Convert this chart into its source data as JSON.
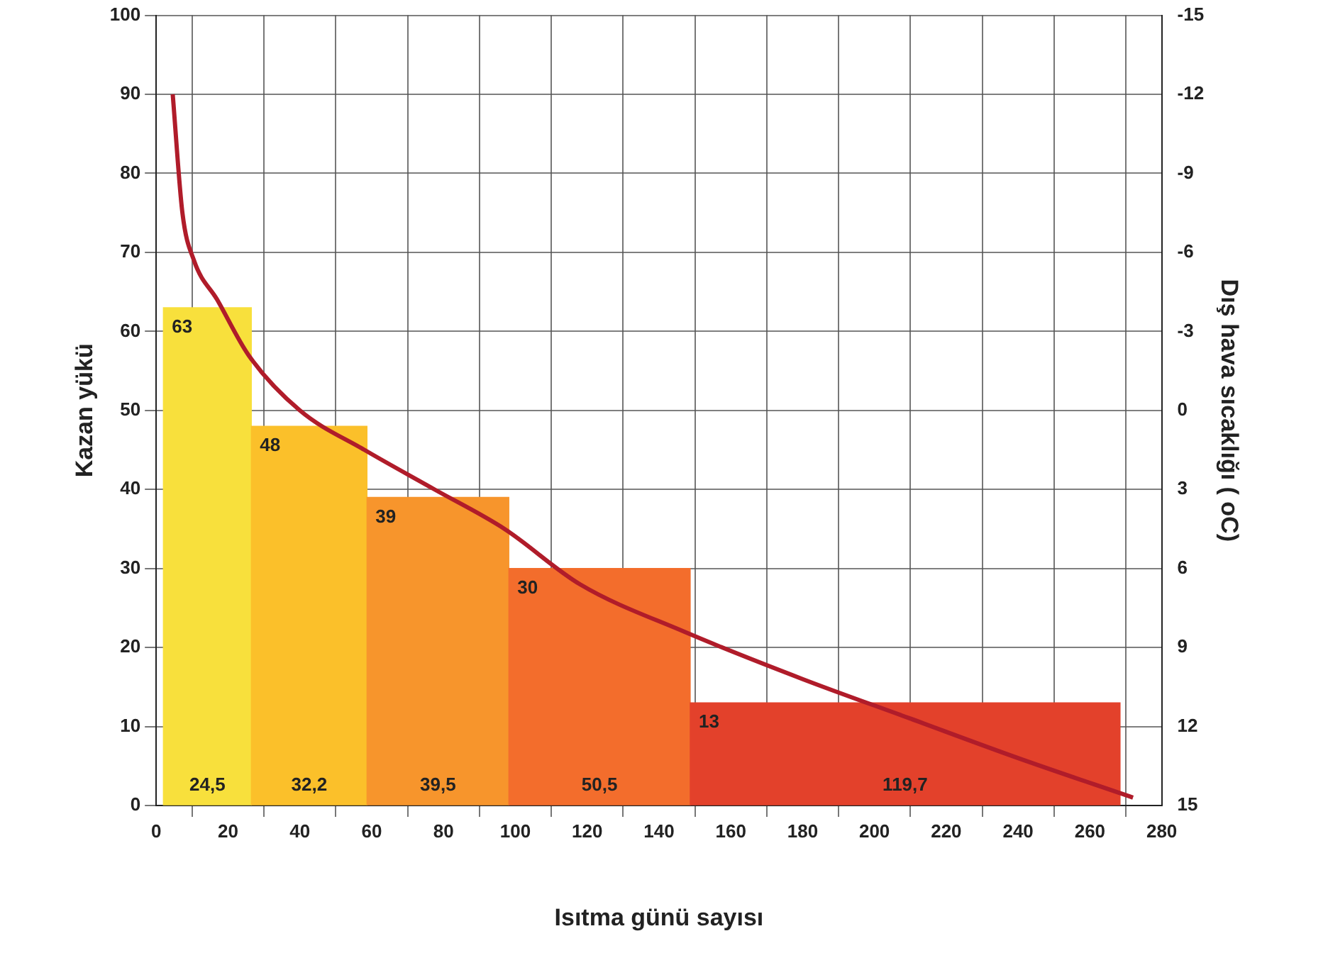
{
  "chart_data": {
    "type": "histogram",
    "xlabel": "Isıtma günü sayısı",
    "ylabel": "Kazan yükü",
    "y2label": "Dış hava sıcaklığı ( oC)",
    "bins": [
      2,
      26.5,
      58.7,
      98.2,
      148.7,
      268.4
    ],
    "values": [
      63,
      48,
      39,
      30,
      13
    ],
    "colors": [
      "#f8e03c",
      "#fbc02a",
      "#f7952c",
      "#f36d2c",
      "#e3412b"
    ],
    "value_labels": [
      "63",
      "48",
      "39",
      "30",
      "13"
    ],
    "series": [
      {
        "type": "line",
        "axis": "y2",
        "color": "#b01c2a",
        "x": [
          4.6,
          7.3,
          10.5,
          17,
          25.7,
          40,
          58,
          77.5,
          97,
          118,
          147,
          180,
          210,
          240,
          272
        ],
        "values": [
          -12,
          -7.5,
          -5.7,
          -4.2,
          -2.1,
          0,
          1.5,
          3,
          4.5,
          6.6,
          8.4,
          10.2,
          11.7,
          13.2,
          14.7
        ]
      }
    ],
    "annotations": [
      "24,5",
      "32,2",
      "39,5",
      "50,5",
      "119,7"
    ],
    "xlim": [
      0,
      280
    ],
    "xticks": [
      0,
      20,
      40,
      60,
      80,
      100,
      120,
      140,
      160,
      180,
      200,
      220,
      240,
      260,
      280
    ],
    "ylim": [
      0,
      100
    ],
    "yticks": [
      0,
      10,
      20,
      30,
      40,
      50,
      60,
      70,
      80,
      90,
      100
    ],
    "y2lim": [
      15,
      -15
    ],
    "y2ticks": [
      15,
      12,
      9,
      6,
      3,
      0,
      -3,
      -6,
      -9,
      -12,
      -15
    ],
    "grid": true,
    "legend": false
  }
}
